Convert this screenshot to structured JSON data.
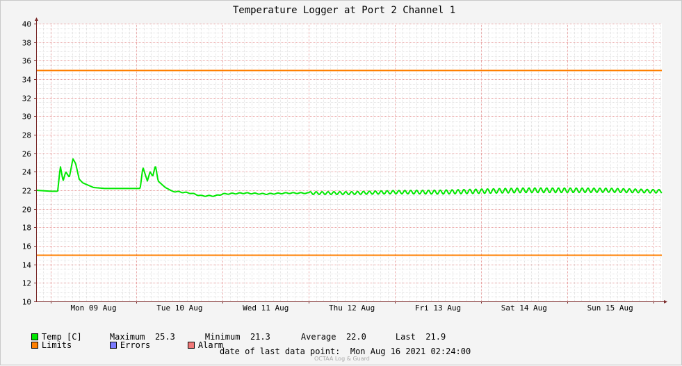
{
  "chart_data": {
    "type": "line",
    "title": "Temperature Logger at Port 2 Channel 1",
    "ylim": [
      10,
      40
    ],
    "yticks": [
      10,
      12,
      14,
      16,
      18,
      20,
      22,
      24,
      26,
      28,
      30,
      32,
      34,
      36,
      38,
      40
    ],
    "xlim": [
      "2021-08-08 20:00",
      "2021-08-16 02:24"
    ],
    "xtick_labels": [
      "Mon 09 Aug",
      "Tue 10 Aug",
      "Wed 11 Aug",
      "Thu 12 Aug",
      "Fri 13 Aug",
      "Sat 14 Aug",
      "Sun 15 Aug"
    ],
    "grid": true,
    "limits": {
      "upper": 35,
      "lower": 15
    },
    "series": [
      {
        "name": "Temp [C]",
        "color": "#00e800",
        "points": [
          [
            "2021-08-08 20:00",
            22.0
          ],
          [
            "2021-08-09 00:00",
            21.9
          ],
          [
            "2021-08-09 02:00",
            21.9
          ],
          [
            "2021-08-09 02:45",
            24.6
          ],
          [
            "2021-08-09 03:30",
            23.0
          ],
          [
            "2021-08-09 04:15",
            24.0
          ],
          [
            "2021-08-09 05:15",
            23.4
          ],
          [
            "2021-08-09 06:15",
            25.4
          ],
          [
            "2021-08-09 07:00",
            24.9
          ],
          [
            "2021-08-09 08:00",
            23.2
          ],
          [
            "2021-08-09 09:00",
            22.8
          ],
          [
            "2021-08-09 12:00",
            22.3
          ],
          [
            "2021-08-09 15:00",
            22.2
          ],
          [
            "2021-08-09 20:00",
            22.2
          ],
          [
            "2021-08-10 00:00",
            22.2
          ],
          [
            "2021-08-10 01:00",
            22.2
          ],
          [
            "2021-08-10 01:45",
            24.5
          ],
          [
            "2021-08-10 03:00",
            23.0
          ],
          [
            "2021-08-10 03:45",
            24.0
          ],
          [
            "2021-08-10 04:30",
            23.5
          ],
          [
            "2021-08-10 05:15",
            24.7
          ],
          [
            "2021-08-10 06:00",
            23.0
          ],
          [
            "2021-08-10 08:00",
            22.3
          ],
          [
            "2021-08-10 10:00",
            21.9
          ],
          [
            "2021-08-10 15:00",
            21.7
          ],
          [
            "2021-08-10 18:00",
            21.4
          ],
          [
            "2021-08-10 22:00",
            21.4
          ],
          [
            "2021-08-11 00:00",
            21.6
          ],
          [
            "2021-08-11 06:00",
            21.7
          ],
          [
            "2021-08-11 12:00",
            21.6
          ],
          [
            "2021-08-11 18:00",
            21.7
          ],
          [
            "2021-08-12 00:00",
            21.7
          ],
          [
            "2021-08-12 12:00",
            21.7
          ],
          [
            "2021-08-13 00:00",
            21.8
          ],
          [
            "2021-08-13 12:00",
            21.8
          ],
          [
            "2021-08-14 00:00",
            21.9
          ],
          [
            "2021-08-14 12:00",
            22.0
          ],
          [
            "2021-08-15 00:00",
            22.0
          ],
          [
            "2021-08-15 12:00",
            22.0
          ],
          [
            "2021-08-16 00:00",
            21.9
          ],
          [
            "2021-08-16 02:24",
            21.9
          ]
        ]
      }
    ]
  },
  "legend": {
    "temp_label": "Temp [C]",
    "maximum_label": "Maximum",
    "maximum_value": "25.3",
    "minimum_label": "Minimum",
    "minimum_value": "21.3",
    "average_label": "Average",
    "average_value": "22.0",
    "last_label": "Last",
    "last_value": "21.9",
    "limits_label": "Limits",
    "errors_label": "Errors",
    "alarm_label": "Alarm"
  },
  "colors": {
    "temp": "#00e800",
    "limits": "#ff7f00",
    "errors": "#7b7bff",
    "alarm": "#f07878",
    "grid": "#e8a0a0",
    "axis": "#7a2a2a"
  },
  "footer": {
    "last_point_label": "date of last data point:",
    "last_point_value": "Mon Aug 16 2021 02:24:00",
    "watermark": "OCTAA Log & Guard"
  }
}
